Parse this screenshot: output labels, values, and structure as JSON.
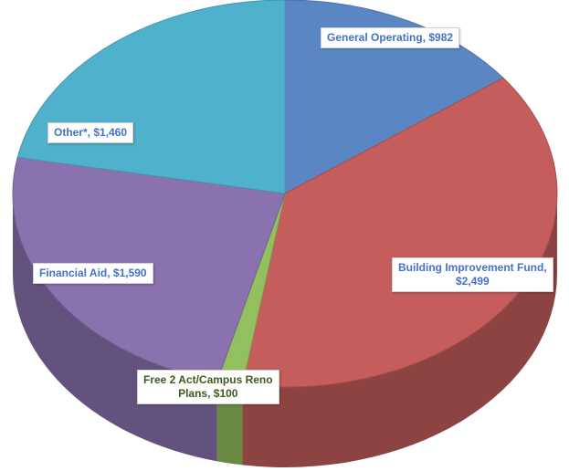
{
  "chart_data": {
    "type": "pie",
    "style": "3d",
    "slices": [
      {
        "label": "General Operating, $982",
        "value": 982,
        "color": "#5b86c4"
      },
      {
        "label": "Building Improvement Fund, $2,499",
        "value": 2499,
        "color": "#c45d5b"
      },
      {
        "label": "Free 2 Act/Campus Reno Plans, $100",
        "value": 100,
        "color": "#93c05e"
      },
      {
        "label": "Financial Aid, $1,590",
        "value": 1590,
        "color": "#8a72ae"
      },
      {
        "label": "Other*, $1,460",
        "value": 1460,
        "color": "#4fb1cb"
      }
    ],
    "label_text": [
      "General Operating, $982",
      "Building Improvement Fund,\n$2,499",
      "Free 2 Act/Campus Reno\nPlans, $100",
      "Financial Aid, $1,590",
      "Other*, $1,460"
    ],
    "label_colors": [
      "#4472c4",
      "#4472c4",
      "#3d5a1e",
      "#4472c4",
      "#4472c4"
    ]
  }
}
